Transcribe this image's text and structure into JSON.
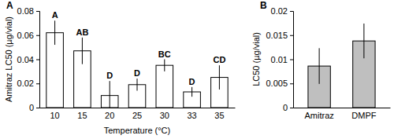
{
  "chart_data": [
    {
      "type": "bar",
      "title": "A",
      "categories": [
        "10",
        "15",
        "20",
        "25",
        "30",
        "33",
        "35"
      ],
      "values": [
        0.062,
        0.047,
        0.01,
        0.019,
        0.035,
        0.013,
        0.025
      ],
      "errors": [
        0.01,
        0.011,
        0.012,
        0.005,
        0.005,
        0.004,
        0.01
      ],
      "letters": [
        "A",
        "AB",
        "D",
        "D",
        "BC",
        "D",
        "CD"
      ],
      "color": "#ffffff",
      "x_label": "Temperature (°C)",
      "y_label": "Amitraz LC50 (µg/vial)",
      "ylim": [
        0,
        0.08
      ],
      "yticks": [
        0,
        0.02,
        0.04,
        0.06,
        0.08
      ]
    },
    {
      "type": "bar",
      "title": "B",
      "categories": [
        "Amitraz",
        "DMPF"
      ],
      "values": [
        0.0086,
        0.0138
      ],
      "errors": [
        0.0037,
        0.0036
      ],
      "color": "#bfbfbf",
      "y_label": "LC50 (µg/vial)",
      "ylim": [
        0,
        0.02
      ],
      "yticks": [
        0,
        0.005,
        0.01,
        0.015,
        0.02
      ]
    }
  ]
}
